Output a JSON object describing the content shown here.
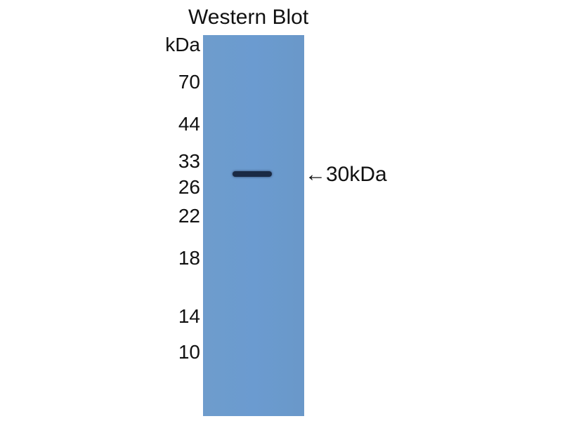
{
  "title": "Western Blot",
  "unit": "kDa",
  "markers": [
    "70",
    "44",
    "33",
    "26",
    "22",
    "18",
    "14",
    "10"
  ],
  "band_annotation": "←30kDa",
  "colors": {
    "membrane": "#6b9bd0",
    "band": "#1a2a44"
  }
}
